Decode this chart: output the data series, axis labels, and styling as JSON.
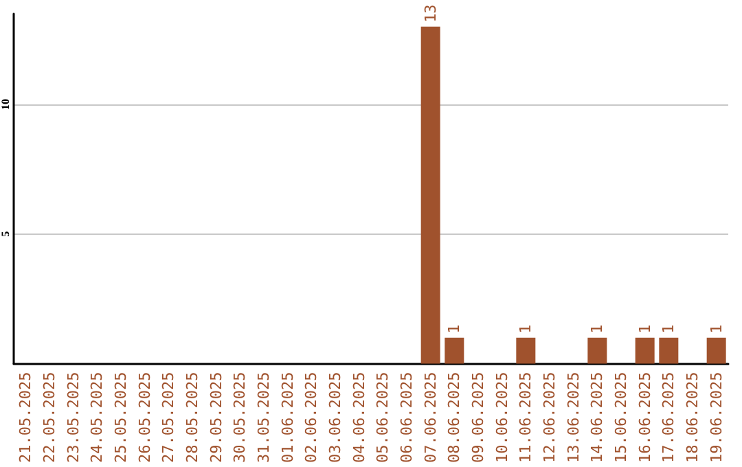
{
  "chart_data": {
    "type": "bar",
    "categories": [
      "21.05.2025",
      "22.05.2025",
      "23.05.2025",
      "24.05.2025",
      "25.05.2025",
      "26.05.2025",
      "27.05.2025",
      "28.05.2025",
      "29.05.2025",
      "30.05.2025",
      "31.05.2025",
      "01.06.2025",
      "02.06.2025",
      "03.06.2025",
      "04.06.2025",
      "05.06.2025",
      "06.06.2025",
      "07.06.2025",
      "08.06.2025",
      "09.06.2025",
      "10.06.2025",
      "11.06.2025",
      "12.06.2025",
      "13.06.2025",
      "14.06.2025",
      "15.06.2025",
      "16.06.2025",
      "17.06.2025",
      "18.06.2025",
      "19.06.2025"
    ],
    "values": [
      0,
      0,
      0,
      0,
      0,
      0,
      0,
      0,
      0,
      0,
      0,
      0,
      0,
      0,
      0,
      0,
      0,
      13,
      1,
      0,
      0,
      1,
      0,
      0,
      1,
      0,
      1,
      1,
      0,
      1
    ],
    "value_labels": [
      null,
      null,
      null,
      null,
      null,
      null,
      null,
      null,
      null,
      null,
      null,
      null,
      null,
      null,
      null,
      null,
      null,
      "13",
      "1",
      null,
      null,
      "1",
      null,
      null,
      "1",
      null,
      "1",
      "1",
      null,
      "1"
    ],
    "color": "#a0522d",
    "ylim": [
      0,
      13.5
    ],
    "yticks": [
      5,
      10
    ],
    "grid": "y"
  }
}
